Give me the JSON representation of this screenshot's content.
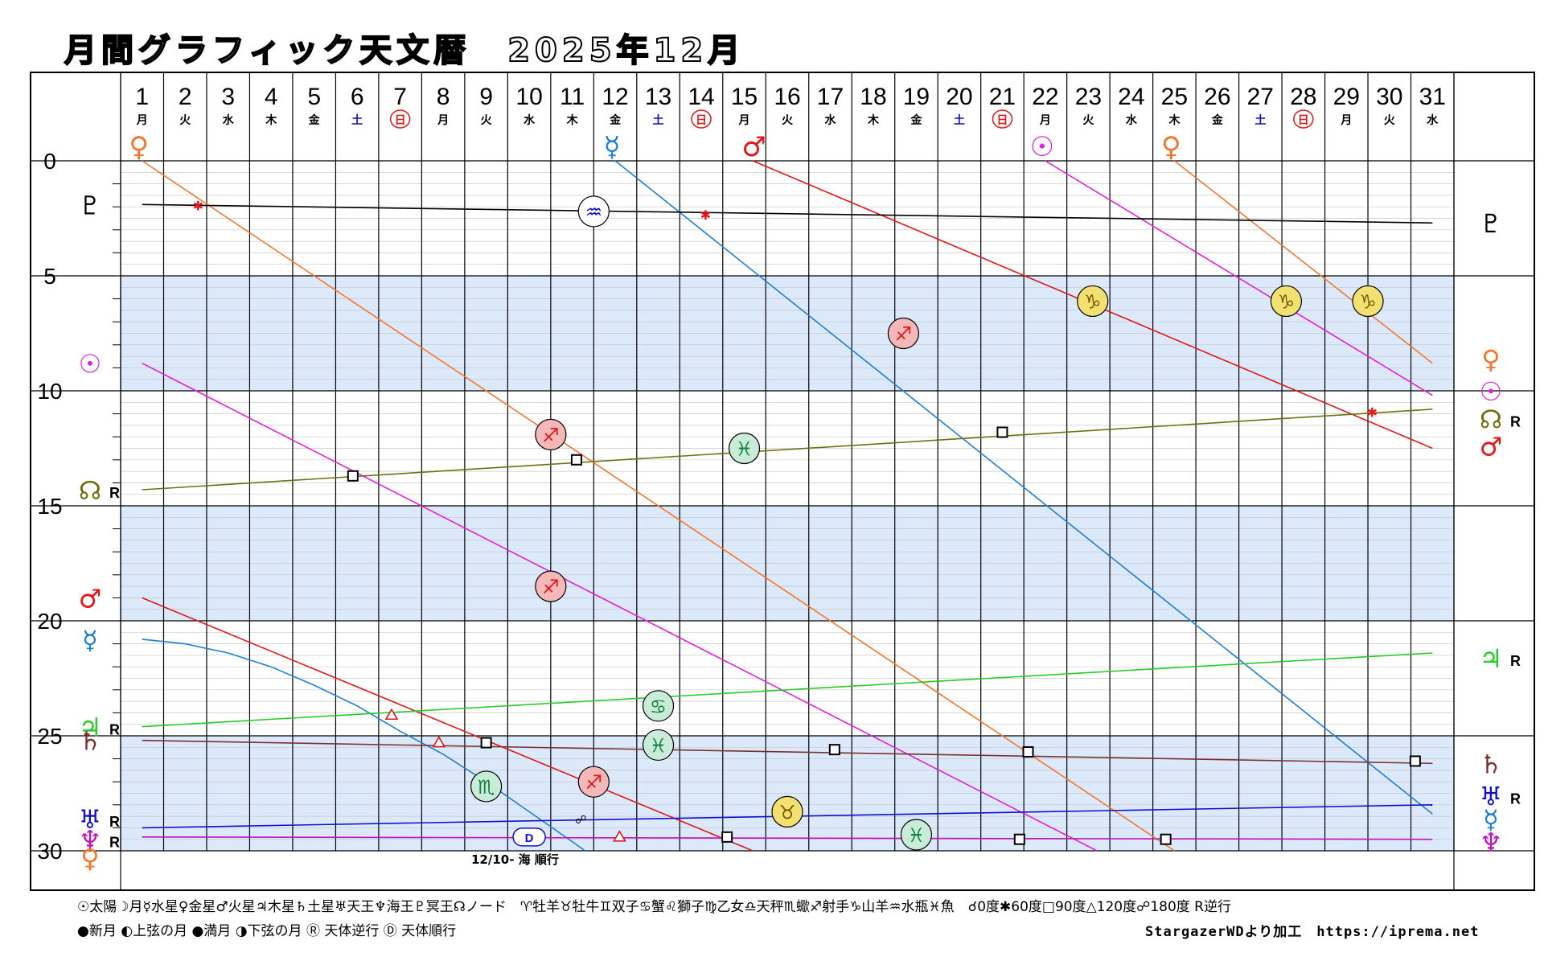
{
  "title": "月間グラフィック天文暦　2025年12月",
  "days": [
    {
      "d": "1",
      "w": "月"
    },
    {
      "d": "2",
      "w": "火"
    },
    {
      "d": "3",
      "w": "水"
    },
    {
      "d": "4",
      "w": "木"
    },
    {
      "d": "5",
      "w": "金"
    },
    {
      "d": "6",
      "w": "土"
    },
    {
      "d": "7",
      "w": "日"
    },
    {
      "d": "8",
      "w": "月"
    },
    {
      "d": "9",
      "w": "火"
    },
    {
      "d": "10",
      "w": "水"
    },
    {
      "d": "11",
      "w": "木"
    },
    {
      "d": "12",
      "w": "金"
    },
    {
      "d": "13",
      "w": "土"
    },
    {
      "d": "14",
      "w": "日"
    },
    {
      "d": "15",
      "w": "月"
    },
    {
      "d": "16",
      "w": "火"
    },
    {
      "d": "17",
      "w": "水"
    },
    {
      "d": "18",
      "w": "木"
    },
    {
      "d": "19",
      "w": "金"
    },
    {
      "d": "20",
      "w": "土"
    },
    {
      "d": "21",
      "w": "日"
    },
    {
      "d": "22",
      "w": "月"
    },
    {
      "d": "23",
      "w": "火"
    },
    {
      "d": "24",
      "w": "水"
    },
    {
      "d": "25",
      "w": "木"
    },
    {
      "d": "26",
      "w": "金"
    },
    {
      "d": "27",
      "w": "土"
    },
    {
      "d": "28",
      "w": "日"
    },
    {
      "d": "29",
      "w": "月"
    },
    {
      "d": "30",
      "w": "火"
    },
    {
      "d": "31",
      "w": "水"
    }
  ],
  "note": "12/10- 海 順行",
  "legend": {
    "row1": "☉太陽☽月☿水星♀金星♂火星♃木星♄土星♅天王♆海王♇冥王☊ノード　♈牡羊♉牡牛♊双子♋蟹♌獅子♍乙女♎天秤♏蠍♐射手♑山羊♒水瓶♓魚　☌0度✱60度□90度△120度☍180度 R逆行",
    "row2": "●新月 ◐上弦の月 ●満月 ◑下弦の月 Ⓡ 天体逆行 Ⓓ 天体順行"
  },
  "credit": "StargazerWDより加工　https://iprema.net",
  "colors": {
    "sun": "#e020e0",
    "mercury": "#1e7fd8",
    "venus": "#f07830",
    "mars": "#e01818",
    "jupiter": "#22cc22",
    "saturn": "#7a3030",
    "uranus": "#1010cc",
    "neptune": "#c010c0",
    "pluto": "#000000",
    "node": "#707010",
    "band": "#dce9fa"
  },
  "chart_data": {
    "type": "line",
    "x_label_axis": "day of month (December 2025)",
    "ylim": [
      0,
      30
    ],
    "y_ticks": [
      0,
      5,
      10,
      15,
      20,
      25,
      30
    ],
    "series": [
      {
        "name": "☉",
        "color": "#e020e0",
        "segments": [
          [
            [
              1,
              8.8
            ],
            [
              23.2,
              30
            ]
          ],
          [
            [
              22,
              0
            ],
            [
              31,
              10.2
            ]
          ]
        ]
      },
      {
        "name": "☿",
        "color": "#1e7fd8",
        "curve": true,
        "segments": [
          [
            [
              1,
              20.8
            ],
            [
              2,
              21
            ],
            [
              3,
              21.4
            ],
            [
              4,
              22
            ],
            [
              5,
              22.8
            ],
            [
              6,
              23.7
            ],
            [
              7,
              24.8
            ],
            [
              8,
              25.8
            ],
            [
              9,
              27
            ],
            [
              10,
              28.3
            ],
            [
              11,
              29.6
            ],
            [
              11.3,
              30
            ]
          ],
          [
            [
              12,
              0
            ],
            [
              31,
              28.4
            ]
          ]
        ]
      },
      {
        "name": "♀",
        "color": "#f07830",
        "segments": [
          [
            [
              1,
              0
            ],
            [
              25,
              30
            ]
          ],
          [
            [
              25,
              0
            ],
            [
              31,
              8.8
            ]
          ]
        ]
      },
      {
        "name": "♂",
        "color": "#e01818",
        "segments": [
          [
            [
              1,
              19
            ],
            [
              15.2,
              30
            ]
          ],
          [
            [
              15.2,
              0
            ],
            [
              31,
              12.5
            ]
          ]
        ]
      },
      {
        "name": "♃",
        "color": "#22cc22",
        "segments": [
          [
            [
              1,
              24.6
            ],
            [
              31,
              21.4
            ]
          ]
        ]
      },
      {
        "name": "♄",
        "color": "#7a3030",
        "segments": [
          [
            [
              1,
              25.2
            ],
            [
              31,
              26.2
            ]
          ]
        ]
      },
      {
        "name": "♅",
        "color": "#1010cc",
        "segments": [
          [
            [
              1,
              29
            ],
            [
              31,
              28
            ]
          ]
        ]
      },
      {
        "name": "♆",
        "color": "#c010c0",
        "segments": [
          [
            [
              1,
              29.4
            ],
            [
              31,
              29.5
            ]
          ]
        ]
      },
      {
        "name": "♇",
        "color": "#000000",
        "segments": [
          [
            [
              1,
              1.9
            ],
            [
              31,
              2.7
            ]
          ]
        ]
      },
      {
        "name": "☊",
        "color": "#707010",
        "segments": [
          [
            [
              1,
              14.3
            ],
            [
              31,
              10.8
            ]
          ]
        ]
      }
    ],
    "aspects": [
      {
        "type": "sextile",
        "day": 2.3,
        "deg": 1.9
      },
      {
        "type": "sextile",
        "day": 14.1,
        "deg": 2.3
      },
      {
        "type": "sextile",
        "day": 29.6,
        "deg": 10.9
      },
      {
        "type": "square",
        "day": 5.9,
        "deg": 13.7
      },
      {
        "type": "square",
        "day": 11.1,
        "deg": 13.0
      },
      {
        "type": "square",
        "day": 21.0,
        "deg": 11.8
      },
      {
        "type": "square",
        "day": 9.0,
        "deg": 25.3
      },
      {
        "type": "square",
        "day": 17.1,
        "deg": 25.6
      },
      {
        "type": "square",
        "day": 21.6,
        "deg": 25.7
      },
      {
        "type": "square",
        "day": 30.6,
        "deg": 26.1
      },
      {
        "type": "square",
        "day": 14.6,
        "deg": 29.4
      },
      {
        "type": "square",
        "day": 21.4,
        "deg": 29.5
      },
      {
        "type": "square",
        "day": 24.8,
        "deg": 29.5
      },
      {
        "type": "trine",
        "day": 6.8,
        "deg": 24.1
      },
      {
        "type": "trine",
        "day": 7.9,
        "deg": 25.3
      },
      {
        "type": "trine",
        "day": 12.1,
        "deg": 29.4
      },
      {
        "type": "opposition",
        "day": 11.2,
        "deg": 28.6
      }
    ],
    "moon_signs": [
      {
        "sign": "♒",
        "day": 11.5,
        "deg": 2.2,
        "fill": "#ffffff",
        "color": "#1010cc"
      },
      {
        "sign": "♐",
        "day": 18.7,
        "deg": 7.5,
        "fill": "#f4b8b8",
        "color": "#e01818"
      },
      {
        "sign": "♑",
        "day": 23.1,
        "deg": 6.1,
        "fill": "#f2e070",
        "color": "#7a5a00"
      },
      {
        "sign": "♑",
        "day": 27.6,
        "deg": 6.1,
        "fill": "#f2e070",
        "color": "#7a5a00"
      },
      {
        "sign": "♑",
        "day": 29.5,
        "deg": 6.1,
        "fill": "#f2e070",
        "color": "#7a5a00"
      },
      {
        "sign": "♐",
        "day": 10.5,
        "deg": 11.9,
        "fill": "#f4b8b8",
        "color": "#e01818"
      },
      {
        "sign": "♓",
        "day": 15.0,
        "deg": 12.5,
        "fill": "#c8ecd8",
        "color": "#108040"
      },
      {
        "sign": "♐",
        "day": 10.5,
        "deg": 18.5,
        "fill": "#f4b8b8",
        "color": "#e01818"
      },
      {
        "sign": "♋",
        "day": 13.0,
        "deg": 23.7,
        "fill": "#c8ecd8",
        "color": "#108040"
      },
      {
        "sign": "♓",
        "day": 13.0,
        "deg": 25.4,
        "fill": "#c8ecd8",
        "color": "#108040"
      },
      {
        "sign": "♏",
        "day": 9.0,
        "deg": 27.2,
        "fill": "#c8ecd8",
        "color": "#108040"
      },
      {
        "sign": "♐",
        "day": 11.5,
        "deg": 27.0,
        "fill": "#f4b8b8",
        "color": "#e01818"
      },
      {
        "sign": "♉",
        "day": 16.0,
        "deg": 28.3,
        "fill": "#f2e070",
        "color": "#7a5a00"
      },
      {
        "sign": "♓",
        "day": 19.0,
        "deg": 29.3,
        "fill": "#c8ecd8",
        "color": "#108040"
      }
    ],
    "sign_ingress": [
      {
        "glyph": "♀",
        "day": 1,
        "color": "#f07830"
      },
      {
        "glyph": "☿",
        "day": 12,
        "color": "#1e7fd8"
      },
      {
        "glyph": "♂",
        "day": 15.3,
        "color": "#e01818"
      },
      {
        "glyph": "☉",
        "day": 22,
        "color": "#e020e0"
      },
      {
        "glyph": "♀",
        "day": 25,
        "color": "#f07830"
      }
    ],
    "direct_station": {
      "label": "D",
      "day": 10,
      "deg": 29.4
    },
    "left_labels": [
      {
        "glyph": "♇",
        "deg": 1.9,
        "color": "#000000"
      },
      {
        "glyph": "☉",
        "deg": 8.8,
        "color": "#e020e0"
      },
      {
        "glyph": "☊",
        "deg": 14.3,
        "color": "#707010",
        "R": true
      },
      {
        "glyph": "♂",
        "deg": 19,
        "color": "#e01818"
      },
      {
        "glyph": "☿",
        "deg": 20.8,
        "color": "#1e7fd8"
      },
      {
        "glyph": "♃",
        "deg": 24.6,
        "color": "#22cc22",
        "R": true
      },
      {
        "glyph": "♄",
        "deg": 25.2,
        "color": "#7a3030"
      },
      {
        "glyph": "♅",
        "deg": 28.6,
        "color": "#1010cc",
        "R": true
      },
      {
        "glyph": "♆",
        "deg": 29.5,
        "color": "#c010c0",
        "R": true
      },
      {
        "glyph": "♀",
        "deg": 30.3,
        "color": "#f07830"
      }
    ],
    "right_labels": [
      {
        "glyph": "♇",
        "deg": 2.7,
        "color": "#000000"
      },
      {
        "glyph": "♀",
        "deg": 8.6,
        "color": "#f07830"
      },
      {
        "glyph": "☉",
        "deg": 10,
        "color": "#e020e0"
      },
      {
        "glyph": "☊",
        "deg": 11.2,
        "color": "#707010",
        "R": true
      },
      {
        "glyph": "♂",
        "deg": 12.4,
        "color": "#e01818"
      },
      {
        "glyph": "♃",
        "deg": 21.6,
        "color": "#22cc22",
        "R": true
      },
      {
        "glyph": "♄",
        "deg": 26.2,
        "color": "#7a3030"
      },
      {
        "glyph": "♅",
        "deg": 27.6,
        "color": "#1010cc",
        "R": true
      },
      {
        "glyph": "☿",
        "deg": 28.6,
        "color": "#1e7fd8"
      },
      {
        "glyph": "♆",
        "deg": 29.6,
        "color": "#c010c0"
      }
    ]
  }
}
